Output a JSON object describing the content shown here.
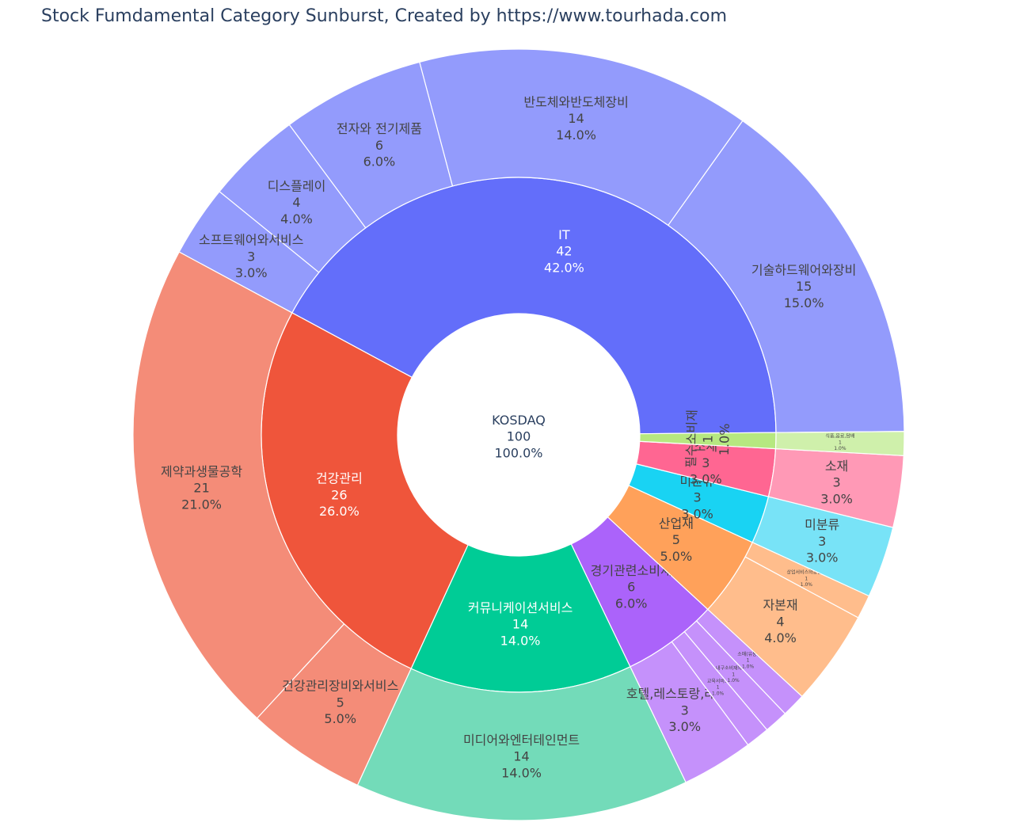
{
  "title": "Stock Fumdamental Category Sunburst, Created by https://www.tourhada.com",
  "chart_data": {
    "type": "sunburst",
    "root": {
      "label": "KOSDAQ",
      "value": 100,
      "percent": "100.0%"
    },
    "sectors": [
      {
        "label": "IT",
        "value": 42,
        "percent": "42.0%",
        "color": "#636efa",
        "child_color": "#939bfc",
        "children": [
          {
            "label": "기술하드웨어와장비",
            "value": 15,
            "percent": "15.0%"
          },
          {
            "label": "반도체와반도체장비",
            "value": 14,
            "percent": "14.0%"
          },
          {
            "label": "전자와 전기제품",
            "value": 6,
            "percent": "6.0%"
          },
          {
            "label": "디스플레이",
            "value": 4,
            "percent": "4.0%"
          },
          {
            "label": "소프트웨어와서비스",
            "value": 3,
            "percent": "3.0%"
          }
        ]
      },
      {
        "label": "건강관리",
        "value": 26,
        "percent": "26.0%",
        "color": "#ef553b",
        "child_color": "#f48c78",
        "children": [
          {
            "label": "제약과생물공학",
            "value": 21,
            "percent": "21.0%"
          },
          {
            "label": "건강관리장비와서비스",
            "value": 5,
            "percent": "5.0%"
          }
        ]
      },
      {
        "label": "커뮤니케이션서비스",
        "value": 14,
        "percent": "14.0%",
        "color": "#00cc96",
        "child_color": "#73dbb9",
        "children": [
          {
            "label": "미디어와엔터테인먼트",
            "value": 14,
            "percent": "14.0%"
          }
        ]
      },
      {
        "label": "경기관련소비재",
        "value": 6,
        "percent": "6.0%",
        "color": "#ab63fa",
        "child_color": "#c591fb",
        "children": [
          {
            "label": "호텔,레스토랑,레저 등",
            "value": 3,
            "percent": "3.0%"
          },
          {
            "label": "교육서비스",
            "value": 1,
            "percent": "1.0%"
          },
          {
            "label": "내구소비재와의류",
            "value": 1,
            "percent": "1.0%"
          },
          {
            "label": "소매(유통)",
            "value": 1,
            "percent": "1.0%"
          }
        ]
      },
      {
        "label": "산업재",
        "value": 5,
        "percent": "5.0%",
        "color": "#ffa15a",
        "child_color": "#ffbd8c",
        "children": [
          {
            "label": "자본재",
            "value": 4,
            "percent": "4.0%"
          },
          {
            "label": "상업서비스와공급품",
            "value": 1,
            "percent": "1.0%"
          }
        ]
      },
      {
        "label": "미분류",
        "value": 3,
        "percent": "3.0%",
        "color": "#19d3f3",
        "child_color": "#78e3f7",
        "children": [
          {
            "label": "미분류",
            "value": 3,
            "percent": "3.0%"
          }
        ]
      },
      {
        "label": "소재",
        "value": 3,
        "percent": "3.0%",
        "color": "#ff6692",
        "child_color": "#ff99b6",
        "children": [
          {
            "label": "소재",
            "value": 3,
            "percent": "3.0%"
          }
        ]
      },
      {
        "label": "필수소비재",
        "value": 1,
        "percent": "1.0%",
        "color": "#b6e880",
        "child_color": "#cff0ab",
        "children": [
          {
            "label": "식품,음료,담배",
            "value": 1,
            "percent": "1.0%"
          }
        ]
      }
    ]
  }
}
